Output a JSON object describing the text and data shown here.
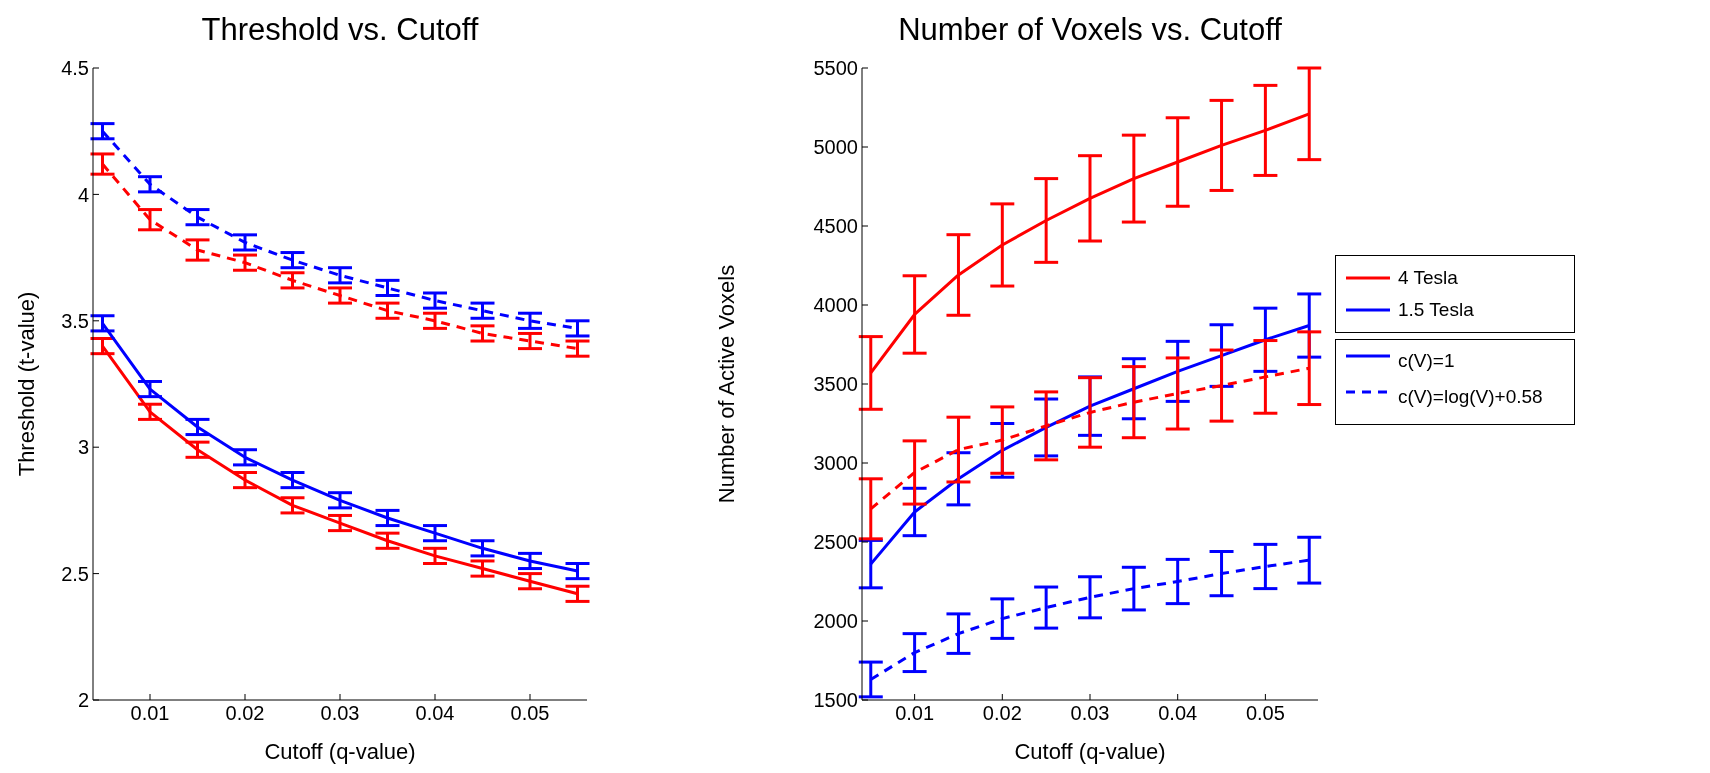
{
  "chart_data": [
    {
      "type": "line",
      "title": "Threshold vs. Cutoff",
      "xlabel": "Cutoff (q-value)",
      "ylabel": "Threshold (t-value)",
      "x": [
        0.005,
        0.01,
        0.015,
        0.02,
        0.025,
        0.03,
        0.035,
        0.04,
        0.045,
        0.05,
        0.055
      ],
      "xlim": [
        0.004,
        0.056
      ],
      "xticks": [
        0.01,
        0.02,
        0.03,
        0.04,
        0.05
      ],
      "ylim": [
        2,
        4.5
      ],
      "yticks": [
        2,
        2.5,
        3,
        3.5,
        4,
        4.5
      ],
      "grid": false,
      "series": [
        {
          "color": "#ff0000",
          "line_style": "solid",
          "values": [
            3.4,
            3.14,
            2.99,
            2.87,
            2.77,
            2.7,
            2.63,
            2.57,
            2.52,
            2.47,
            2.42
          ],
          "errors": [
            0.03,
            0.03,
            0.03,
            0.03,
            0.03,
            0.03,
            0.03,
            0.03,
            0.03,
            0.03,
            0.03
          ]
        },
        {
          "color": "#0000ff",
          "line_style": "solid",
          "values": [
            3.49,
            3.23,
            3.08,
            2.96,
            2.87,
            2.79,
            2.72,
            2.66,
            2.6,
            2.55,
            2.51
          ],
          "errors": [
            0.03,
            0.03,
            0.03,
            0.03,
            0.03,
            0.03,
            0.03,
            0.03,
            0.03,
            0.03,
            0.03
          ]
        },
        {
          "color": "#ff0000",
          "line_style": "dashed",
          "values": [
            4.12,
            3.9,
            3.78,
            3.73,
            3.66,
            3.6,
            3.54,
            3.5,
            3.45,
            3.42,
            3.39
          ],
          "errors": [
            0.04,
            0.04,
            0.04,
            0.03,
            0.03,
            0.03,
            0.03,
            0.03,
            0.03,
            0.03,
            0.03
          ]
        },
        {
          "color": "#0000ff",
          "line_style": "dashed",
          "values": [
            4.25,
            4.04,
            3.91,
            3.81,
            3.74,
            3.68,
            3.63,
            3.58,
            3.54,
            3.5,
            3.47
          ],
          "errors": [
            0.03,
            0.03,
            0.03,
            0.03,
            0.03,
            0.03,
            0.03,
            0.03,
            0.03,
            0.03,
            0.03
          ]
        }
      ]
    },
    {
      "type": "line",
      "title": "Number of Voxels vs. Cutoff",
      "xlabel": "Cutoff (q-value)",
      "ylabel": "Number of Active Voxels",
      "x": [
        0.005,
        0.01,
        0.015,
        0.02,
        0.025,
        0.03,
        0.035,
        0.04,
        0.045,
        0.05,
        0.055
      ],
      "xlim": [
        0.004,
        0.056
      ],
      "xticks": [
        0.01,
        0.02,
        0.03,
        0.04,
        0.05
      ],
      "ylim": [
        1500,
        5500
      ],
      "yticks": [
        1500,
        2000,
        2500,
        3000,
        3500,
        4000,
        4500,
        5000,
        5500
      ],
      "grid": false,
      "legend": "right",
      "annotations": [
        "c(V)=1",
        "c(V)=log(V)+0.58"
      ],
      "series": [
        {
          "name": "4 Tesla",
          "color": "#ff0000",
          "line_style": "solid",
          "values": [
            3570,
            3940,
            4190,
            4380,
            4535,
            4675,
            4800,
            4905,
            5010,
            5105,
            5210
          ],
          "errors": [
            230,
            245,
            255,
            260,
            265,
            270,
            275,
            280,
            285,
            285,
            290
          ]
        },
        {
          "name": "1.5 Tesla",
          "color": "#0000ff",
          "line_style": "solid",
          "values": [
            2360,
            2690,
            2900,
            3080,
            3225,
            3360,
            3470,
            3580,
            3680,
            3780,
            3870
          ],
          "errors": [
            150,
            150,
            165,
            170,
            180,
            185,
            190,
            190,
            195,
            200,
            200
          ]
        },
        {
          "color": "#ff0000",
          "line_style": "dashed",
          "values": [
            2710,
            2940,
            3085,
            3145,
            3235,
            3320,
            3385,
            3440,
            3490,
            3545,
            3600
          ],
          "errors": [
            190,
            200,
            205,
            210,
            215,
            220,
            225,
            225,
            225,
            230,
            230
          ]
        },
        {
          "color": "#0000ff",
          "line_style": "dashed",
          "values": [
            1630,
            1800,
            1920,
            2015,
            2085,
            2150,
            2205,
            2250,
            2300,
            2345,
            2385
          ],
          "errors": [
            110,
            120,
            125,
            125,
            130,
            130,
            135,
            140,
            140,
            140,
            145
          ]
        }
      ]
    }
  ]
}
